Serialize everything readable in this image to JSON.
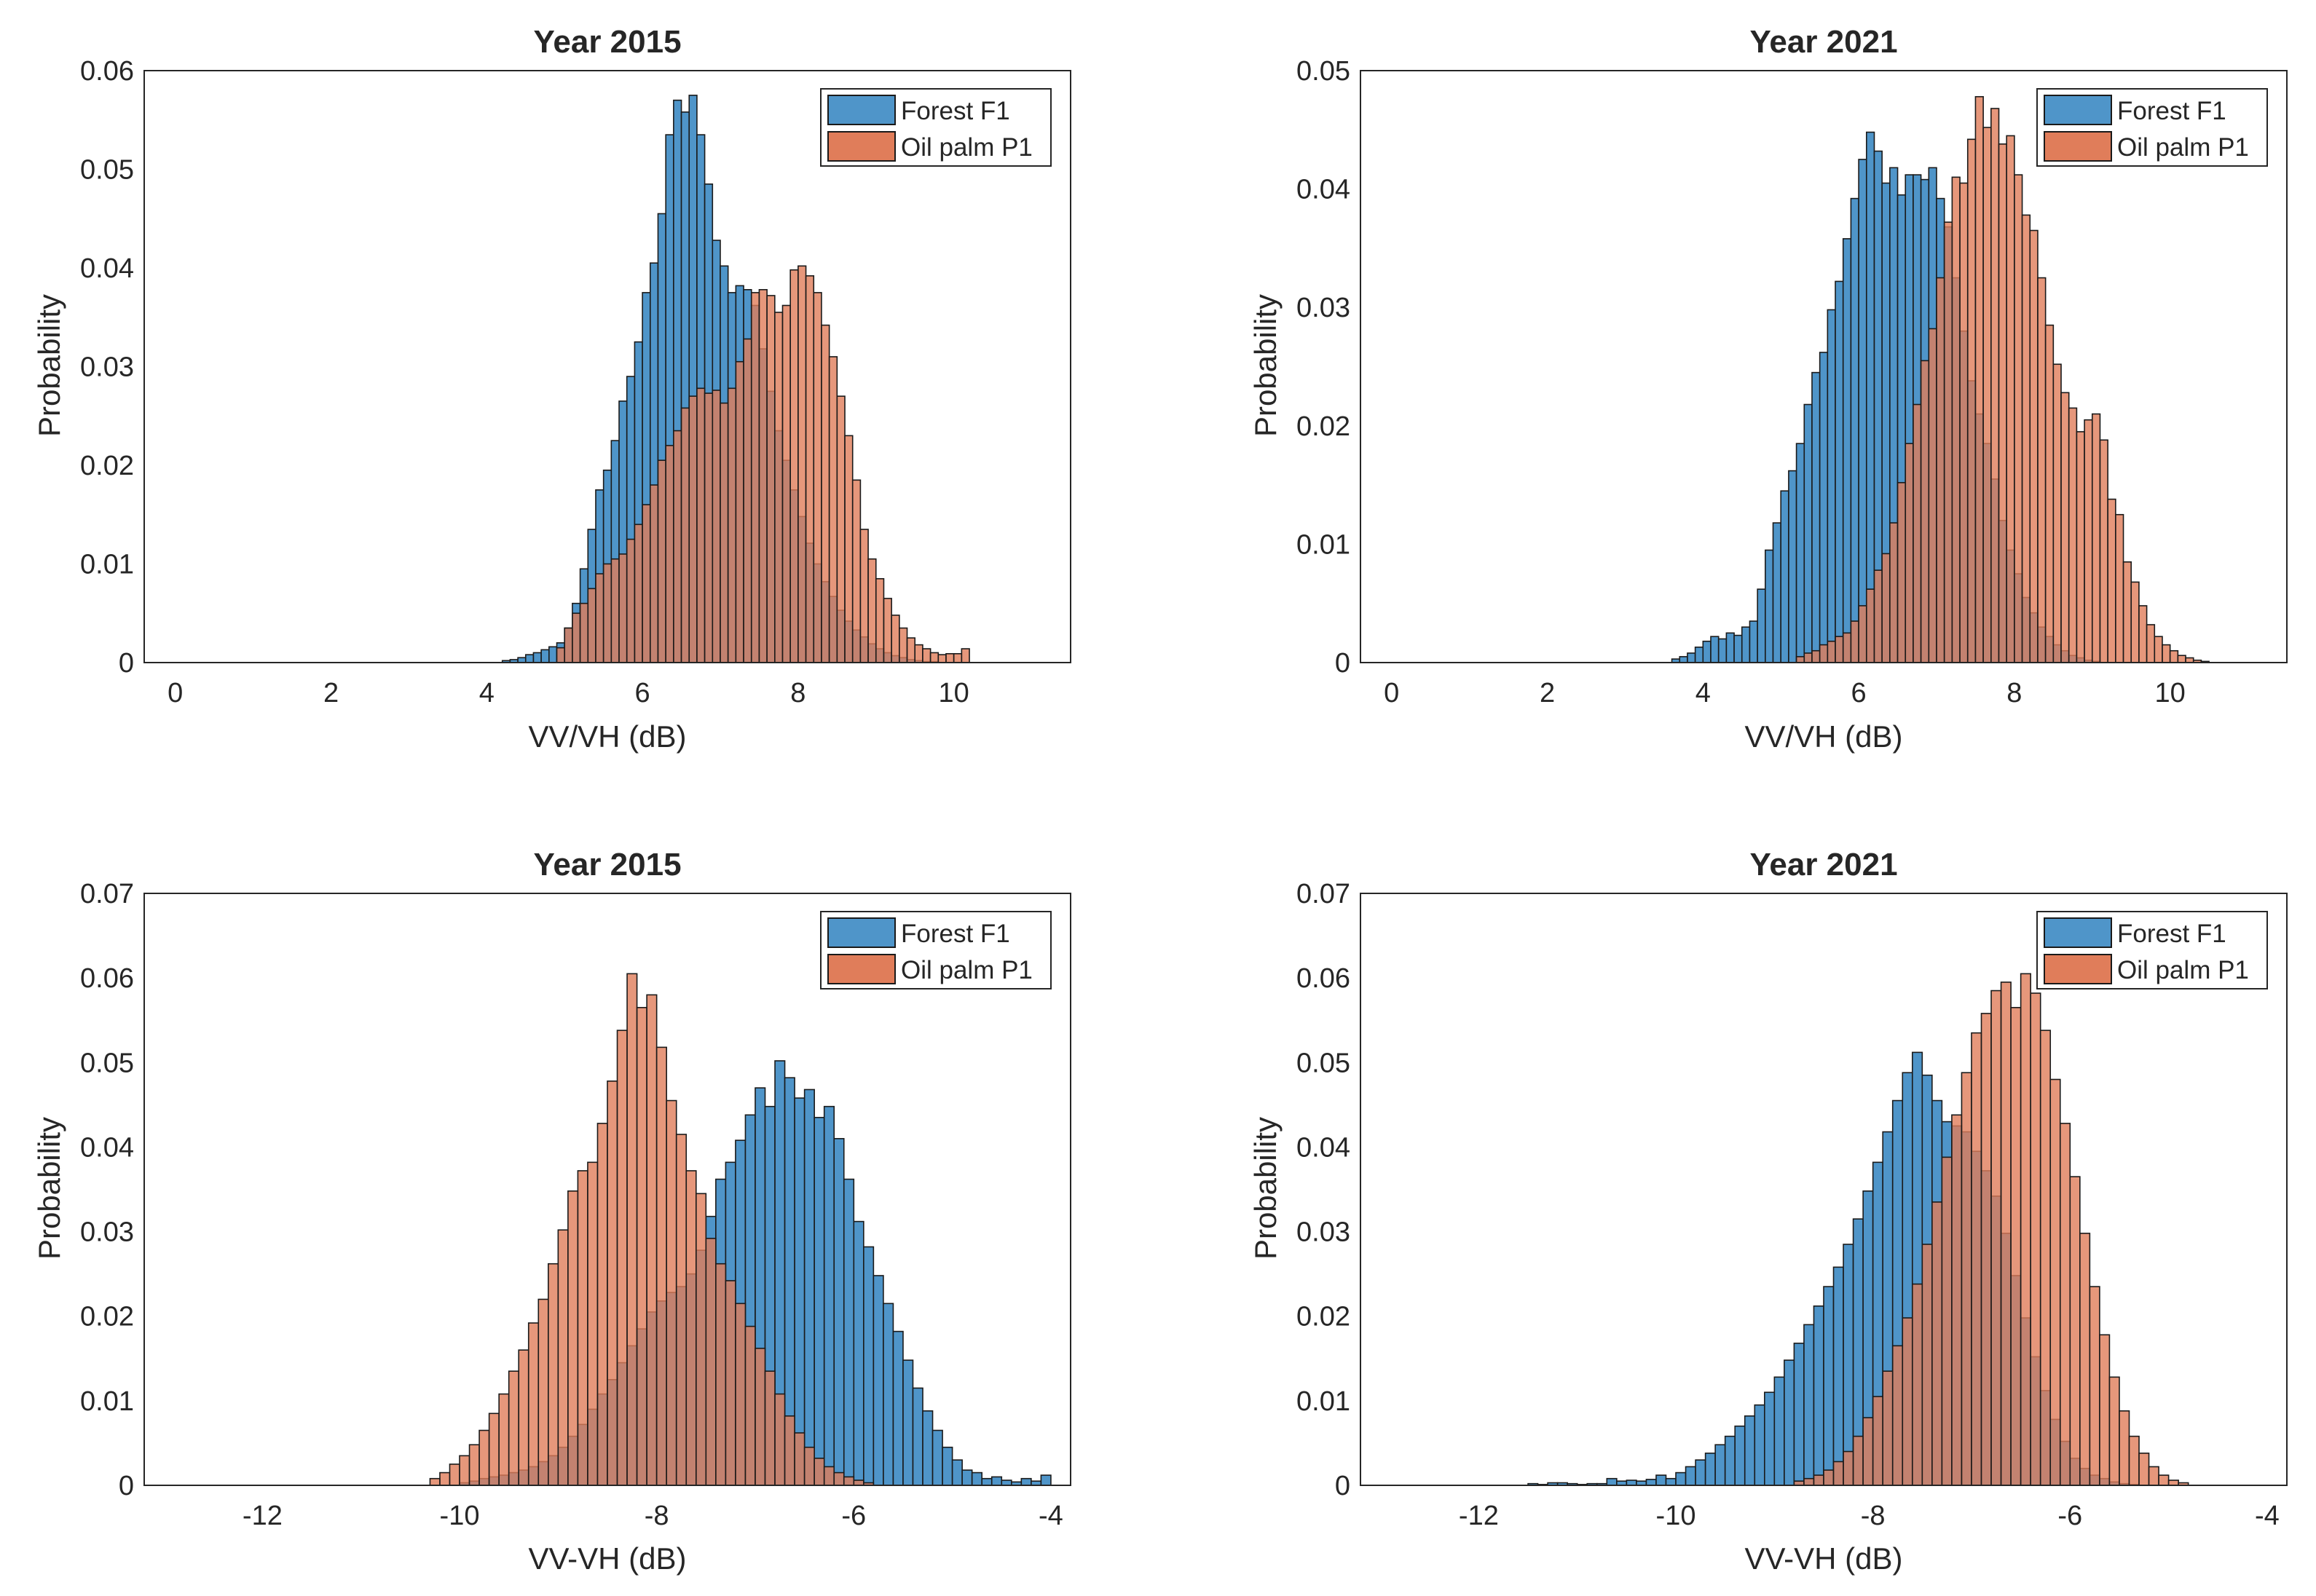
{
  "colors": {
    "forest": "#4f95c9",
    "oil_palm": "#e07d5a",
    "overlap": "#9e6a6c",
    "edge": "#1a1a1a",
    "axis": "#262626"
  },
  "chart_data": [
    {
      "type": "bar",
      "title": "Year 2015",
      "xlabel": "VV/VH (dB)",
      "ylabel": "Probability",
      "xlim": [
        -0.4,
        11.5
      ],
      "ylim": [
        0,
        0.06
      ],
      "xticks": [
        0,
        2,
        4,
        6,
        8,
        10
      ],
      "xtick_labels": [
        "0",
        "2",
        "4",
        "6",
        "8",
        "10"
      ],
      "yticks": [
        0,
        0.01,
        0.02,
        0.03,
        0.04,
        0.05,
        0.06
      ],
      "ytick_labels": [
        "0",
        "0.01",
        "0.02",
        "0.03",
        "0.04",
        "0.05",
        "0.06"
      ],
      "legend": [
        "Forest F1",
        "Oil palm P1"
      ],
      "legend_position": "top-right",
      "series": [
        {
          "name": "Forest F1",
          "x_start": 4.2,
          "bin_width": 0.1,
          "values": [
            0.0002,
            0.0003,
            0.0005,
            0.0008,
            0.001,
            0.0013,
            0.0016,
            0.002,
            0.0035,
            0.006,
            0.0095,
            0.0135,
            0.0175,
            0.0195,
            0.0225,
            0.0265,
            0.029,
            0.0325,
            0.0375,
            0.0405,
            0.0455,
            0.0535,
            0.057,
            0.0558,
            0.0575,
            0.0535,
            0.0485,
            0.0428,
            0.0402,
            0.0375,
            0.0382,
            0.0378,
            0.0362,
            0.0318,
            0.0275,
            0.0235,
            0.0205,
            0.0175,
            0.0148,
            0.0121,
            0.01,
            0.0082,
            0.0067,
            0.0053,
            0.0042,
            0.0033,
            0.0026,
            0.0019,
            0.0014,
            0.001,
            0.0007,
            0.0005,
            0.0003,
            0.0002,
            0.0001,
            0.0001
          ]
        },
        {
          "name": "Oil palm P1",
          "x_start": 4.9,
          "bin_width": 0.1,
          "values": [
            0.0015,
            0.0035,
            0.005,
            0.006,
            0.0075,
            0.009,
            0.01,
            0.0105,
            0.011,
            0.0125,
            0.014,
            0.016,
            0.018,
            0.0205,
            0.022,
            0.0235,
            0.0258,
            0.027,
            0.0278,
            0.0273,
            0.0276,
            0.0263,
            0.0278,
            0.0305,
            0.0328,
            0.0375,
            0.0378,
            0.0372,
            0.0355,
            0.0362,
            0.0398,
            0.0402,
            0.0392,
            0.0375,
            0.0342,
            0.031,
            0.027,
            0.023,
            0.0185,
            0.0135,
            0.0105,
            0.0085,
            0.0065,
            0.0048,
            0.0035,
            0.0025,
            0.0018,
            0.0014,
            0.001,
            0.0008,
            0.0009,
            0.0009,
            0.0014
          ]
        }
      ]
    },
    {
      "type": "bar",
      "title": "Year 2021",
      "xlabel": "VV/VH (dB)",
      "ylabel": "Probability",
      "xlim": [
        -0.4,
        11.5
      ],
      "ylim": [
        0,
        0.05
      ],
      "xticks": [
        0,
        2,
        4,
        6,
        8,
        10
      ],
      "xtick_labels": [
        "0",
        "2",
        "4",
        "6",
        "8",
        "10"
      ],
      "yticks": [
        0,
        0.01,
        0.02,
        0.03,
        0.04,
        0.05
      ],
      "ytick_labels": [
        "0",
        "0.01",
        "0.02",
        "0.03",
        "0.04",
        "0.05"
      ],
      "legend": [
        "Forest F1",
        "Oil palm P1"
      ],
      "legend_position": "top-right",
      "series": [
        {
          "name": "Forest F1",
          "x_start": 3.6,
          "bin_width": 0.1,
          "values": [
            0.0003,
            0.0005,
            0.0008,
            0.0013,
            0.0018,
            0.0022,
            0.002,
            0.0025,
            0.0023,
            0.003,
            0.0035,
            0.0062,
            0.0095,
            0.0118,
            0.0145,
            0.0162,
            0.0185,
            0.0218,
            0.0245,
            0.0262,
            0.0298,
            0.0322,
            0.0358,
            0.0392,
            0.0425,
            0.0448,
            0.0432,
            0.0405,
            0.0418,
            0.0395,
            0.0412,
            0.0412,
            0.0408,
            0.0418,
            0.0392,
            0.0368,
            0.0325,
            0.028,
            0.0238,
            0.021,
            0.0185,
            0.0155,
            0.012,
            0.0095,
            0.0075,
            0.0055,
            0.0042,
            0.003,
            0.0022,
            0.0015,
            0.001,
            0.0006,
            0.0004,
            0.0002,
            0.0001
          ]
        },
        {
          "name": "Oil palm P1",
          "x_start": 5.2,
          "bin_width": 0.1,
          "values": [
            0.0005,
            0.0008,
            0.001,
            0.0015,
            0.0018,
            0.0022,
            0.0025,
            0.0035,
            0.0048,
            0.0062,
            0.0078,
            0.0092,
            0.0118,
            0.0152,
            0.0185,
            0.0218,
            0.0255,
            0.0282,
            0.0325,
            0.0372,
            0.041,
            0.0405,
            0.0442,
            0.0478,
            0.0452,
            0.0468,
            0.0438,
            0.0445,
            0.0412,
            0.0378,
            0.0365,
            0.0325,
            0.0285,
            0.0252,
            0.0228,
            0.0215,
            0.0195,
            0.0205,
            0.021,
            0.0188,
            0.0138,
            0.0125,
            0.0085,
            0.0068,
            0.0048,
            0.0032,
            0.0022,
            0.0015,
            0.001,
            0.0006,
            0.0004,
            0.0002,
            0.0001
          ]
        }
      ]
    },
    {
      "type": "bar",
      "title": "Year 2015",
      "xlabel": "VV-VH (dB)",
      "ylabel": "Probability",
      "xlim": [
        -13.2,
        -3.8
      ],
      "ylim": [
        0,
        0.07
      ],
      "xticks": [
        -12,
        -10,
        -8,
        -6,
        -4
      ],
      "xtick_labels": [
        "-12",
        "-10",
        "-8",
        "-6",
        "-4"
      ],
      "yticks": [
        0,
        0.01,
        0.02,
        0.03,
        0.04,
        0.05,
        0.06,
        0.07
      ],
      "ytick_labels": [
        "0",
        "0.01",
        "0.02",
        "0.03",
        "0.04",
        "0.05",
        "0.06",
        "0.07"
      ],
      "legend": [
        "Forest F1",
        "Oil palm P1"
      ],
      "legend_position": "top-right",
      "series": [
        {
          "name": "Forest F1",
          "x_start": -10.0,
          "bin_width": 0.1,
          "values": [
            0.0003,
            0.0005,
            0.0008,
            0.001,
            0.0012,
            0.0015,
            0.0018,
            0.0022,
            0.0028,
            0.0035,
            0.0045,
            0.0058,
            0.0072,
            0.009,
            0.0108,
            0.0125,
            0.0145,
            0.0165,
            0.0185,
            0.0205,
            0.0218,
            0.0228,
            0.0235,
            0.025,
            0.0278,
            0.0318,
            0.0362,
            0.0382,
            0.0408,
            0.0438,
            0.047,
            0.0448,
            0.0502,
            0.0482,
            0.0458,
            0.0468,
            0.0435,
            0.0448,
            0.041,
            0.0362,
            0.0312,
            0.0282,
            0.0248,
            0.0215,
            0.0182,
            0.0148,
            0.0115,
            0.0088,
            0.0065,
            0.0045,
            0.003,
            0.0018,
            0.0015,
            0.0008,
            0.001,
            0.0006,
            0.0004,
            0.0008,
            0.0005,
            0.0012
          ]
        },
        {
          "name": "Oil palm P1",
          "x_start": -10.3,
          "bin_width": 0.1,
          "values": [
            0.0008,
            0.0015,
            0.0025,
            0.0035,
            0.0048,
            0.0065,
            0.0085,
            0.0108,
            0.0135,
            0.016,
            0.0192,
            0.022,
            0.0262,
            0.0302,
            0.0348,
            0.0372,
            0.0382,
            0.0428,
            0.0478,
            0.0538,
            0.0605,
            0.0565,
            0.058,
            0.0518,
            0.0455,
            0.0415,
            0.0372,
            0.0345,
            0.0292,
            0.0262,
            0.0242,
            0.0215,
            0.0188,
            0.0162,
            0.0135,
            0.0108,
            0.0082,
            0.0062,
            0.0045,
            0.0032,
            0.0022,
            0.0015,
            0.001,
            0.0006,
            0.0003
          ]
        }
      ]
    },
    {
      "type": "bar",
      "title": "Year 2021",
      "xlabel": "VV-VH (dB)",
      "ylabel": "Probability",
      "xlim": [
        -13.2,
        -3.8
      ],
      "ylim": [
        0,
        0.07
      ],
      "xticks": [
        -12,
        -10,
        -8,
        -6,
        -4
      ],
      "xtick_labels": [
        "-12",
        "-10",
        "-8",
        "-6",
        "-4"
      ],
      "yticks": [
        0,
        0.01,
        0.02,
        0.03,
        0.04,
        0.05,
        0.06,
        0.07
      ],
      "ytick_labels": [
        "0",
        "0.01",
        "0.02",
        "0.03",
        "0.04",
        "0.05",
        "0.06",
        "0.07"
      ],
      "legend": [
        "Forest F1",
        "Oil palm P1"
      ],
      "legend_position": "top-right",
      "series": [
        {
          "name": "Forest F1",
          "x_start": -11.5,
          "bin_width": 0.1,
          "values": [
            0.0002,
            0.0001,
            0.0003,
            0.0003,
            0.0002,
            0.0001,
            0.0002,
            0.0002,
            0.0008,
            0.0005,
            0.0006,
            0.0005,
            0.0007,
            0.0012,
            0.0008,
            0.0015,
            0.0022,
            0.003,
            0.0038,
            0.0048,
            0.0058,
            0.007,
            0.0082,
            0.0095,
            0.011,
            0.0128,
            0.0148,
            0.0168,
            0.019,
            0.0212,
            0.0235,
            0.0258,
            0.0285,
            0.0315,
            0.0348,
            0.0382,
            0.0418,
            0.0455,
            0.0488,
            0.0512,
            0.0485,
            0.0455,
            0.043,
            0.0425,
            0.0418,
            0.0395,
            0.0372,
            0.0342,
            0.0298,
            0.0248,
            0.0198,
            0.0152,
            0.0112,
            0.0078,
            0.0052,
            0.0032,
            0.002,
            0.0012,
            0.0008,
            0.0004,
            0.0002,
            0.0001
          ]
        },
        {
          "name": "Oil palm P1",
          "x_start": -8.8,
          "bin_width": 0.1,
          "values": [
            0.0005,
            0.0008,
            0.0012,
            0.0018,
            0.0028,
            0.004,
            0.0058,
            0.008,
            0.0105,
            0.0135,
            0.0165,
            0.0198,
            0.0238,
            0.0285,
            0.0335,
            0.0388,
            0.0438,
            0.0488,
            0.0535,
            0.0558,
            0.0585,
            0.0595,
            0.0565,
            0.0605,
            0.0582,
            0.0538,
            0.048,
            0.0428,
            0.0365,
            0.0298,
            0.0235,
            0.0178,
            0.0128,
            0.0088,
            0.0058,
            0.0038,
            0.0022,
            0.0012,
            0.0006,
            0.0003
          ]
        }
      ]
    }
  ]
}
